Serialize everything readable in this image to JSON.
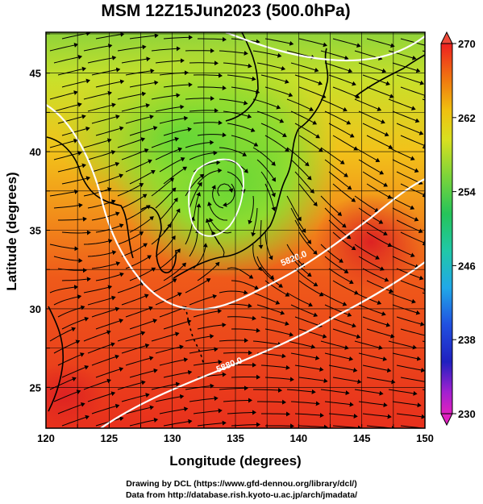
{
  "title": "MSM 12Z15Jun2023 (500.0hPa)",
  "axes": {
    "xlabel": "Longitude (degrees)",
    "ylabel": "Latitude  (degrees)",
    "xlim": [
      120,
      150
    ],
    "ylim": [
      22.4,
      47.6
    ],
    "xticks": [
      "120",
      "125",
      "130",
      "135",
      "140",
      "145",
      "150"
    ],
    "yticks": [
      "25",
      "30",
      "35",
      "40",
      "45"
    ]
  },
  "colorbar": {
    "range": [
      230,
      270
    ],
    "ticks": [
      "270",
      "262",
      "254",
      "246",
      "238",
      "230"
    ]
  },
  "contours": {
    "labels": [
      "5880.0",
      "5820.0"
    ]
  },
  "credits": {
    "line1": "Drawing by DCL (https://www.gfd-dennou.org/library/dcl/)",
    "line2": "Data from http://database.rish.kyoto-u.ac.jp/arch/jmadata/"
  },
  "chart_data": {
    "type": "heatmap",
    "title": "MSM 12Z15Jun2023 (500.0hPa)",
    "xlabel": "Longitude (degrees)",
    "ylabel": "Latitude  (degrees)",
    "xlim": [
      120,
      150
    ],
    "ylim": [
      22.4,
      47.6
    ],
    "zlim": [
      230,
      270
    ],
    "grid": true,
    "legend": "right colorbar",
    "contour_levels": [
      5820.0,
      5880.0
    ]
  }
}
